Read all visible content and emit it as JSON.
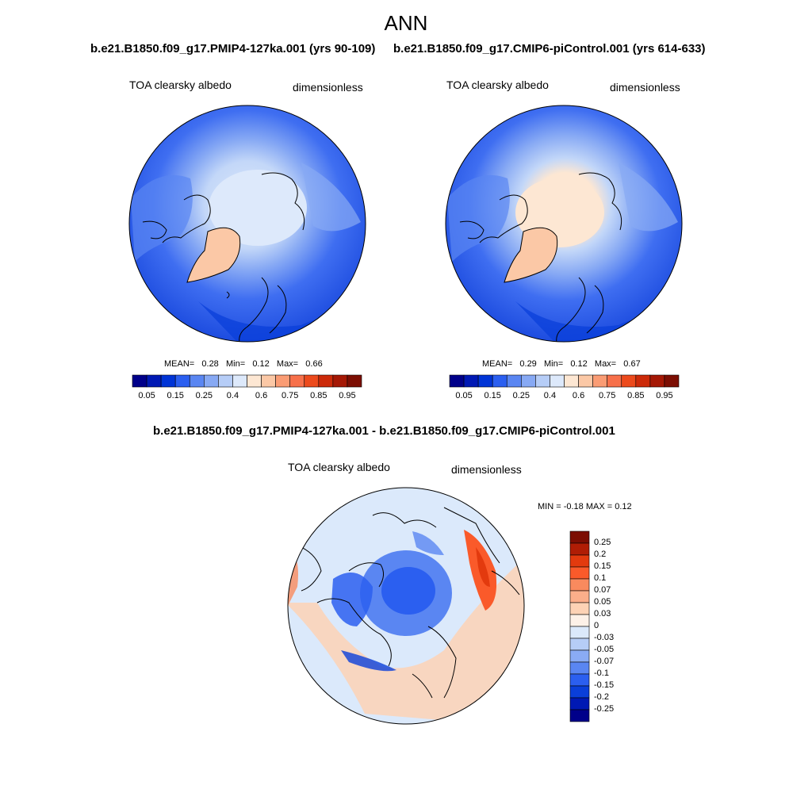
{
  "figure": {
    "season": "ANN"
  },
  "panels": [
    {
      "title": "b.e21.B1850.f09_g17.PMIP4-127ka.001 (yrs 90-109)",
      "variable": "TOA clearsky albedo",
      "units": "dimensionless",
      "stats": {
        "mean_label": "MEAN=",
        "mean": "0.28",
        "min_label": "Min=",
        "min": "0.12",
        "max_label": "Max=",
        "max": "0.66"
      }
    },
    {
      "title": "b.e21.B1850.f09_g17.CMIP6-piControl.001 (yrs 614-633)",
      "variable": "TOA clearsky albedo",
      "units": "dimensionless",
      "stats": {
        "mean_label": "MEAN=",
        "mean": "0.29",
        "min_label": "Min=",
        "min": "0.12",
        "max_label": "Max=",
        "max": "0.67"
      }
    },
    {
      "title": "b.e21.B1850.f09_g17.PMIP4-127ka.001 - b.e21.B1850.f09_g17.CMIP6-piControl.001",
      "variable": "TOA clearsky albedo",
      "units": "dimensionless",
      "stats_text": "MIN =  -0.18 MAX =   0.12"
    }
  ],
  "colorbars": {
    "absolute": {
      "tick_labels": [
        "0.05",
        "0.15",
        "0.25",
        "0.4",
        "0.6",
        "0.75",
        "0.85",
        "0.95"
      ],
      "colors": [
        "#00008a",
        "#0019b4",
        "#0034d6",
        "#2b5ff0",
        "#5a86f2",
        "#87a9f4",
        "#b6cdf7",
        "#dde9fb",
        "#fde7d3",
        "#fbc8a6",
        "#fa9c74",
        "#f7704a",
        "#ec4a1c",
        "#cc2a09",
        "#a51805",
        "#7c0e03"
      ]
    },
    "difference": {
      "labels": [
        "0.25",
        "0.2",
        "0.15",
        "0.1",
        "0.07",
        "0.05",
        "0.03",
        "0",
        "-0.03",
        "-0.05",
        "-0.07",
        "-0.1",
        "-0.15",
        "-0.2",
        "-0.25"
      ],
      "colors": [
        "#7c0e03",
        "#b01d05",
        "#e33a0e",
        "#fa5a2a",
        "#f98a5e",
        "#fbae8a",
        "#fdd2b5",
        "#fdf1e8",
        "#dbe9fb",
        "#b6cdf7",
        "#8aabf4",
        "#5a86f2",
        "#2b5ff0",
        "#0a3fd9",
        "#0019b4",
        "#00008a"
      ]
    }
  }
}
